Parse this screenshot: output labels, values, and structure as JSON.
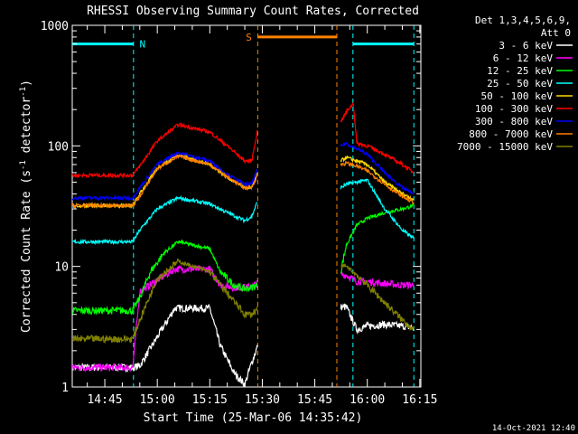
{
  "chart_data": {
    "type": "line",
    "title": "RHESSI Observing Summary Count Rates, Corrected",
    "xlabel": "Start Time (25-Mar-06 14:35:42)",
    "ylabel": "Corrected Count Rate (s⁻¹ detector⁻¹)",
    "ylabel_main": "Corrected Count Rate (s",
    "ylabel_sup1": "-1",
    "ylabel_mid": " detector",
    "ylabel_sup2": "-1",
    "ylabel_end": ")",
    "y_scale": "log",
    "ylim": [
      1,
      1000
    ],
    "y_ticks": [
      {
        "value": 1,
        "label": "1"
      },
      {
        "value": 10,
        "label": "10"
      },
      {
        "value": 100,
        "label": "100"
      },
      {
        "value": 1000,
        "label": "1000"
      }
    ],
    "xlim_minutes": [
      875.7,
      975.3
    ],
    "x_ticks": [
      {
        "value": 885,
        "label": "14:45"
      },
      {
        "value": 900,
        "label": "15:00"
      },
      {
        "value": 915,
        "label": "15:15"
      },
      {
        "value": 930,
        "label": "15:30"
      },
      {
        "value": 945,
        "label": "15:45"
      },
      {
        "value": 960,
        "label": "16:00"
      },
      {
        "value": 975,
        "label": "16:15"
      }
    ],
    "legend_header": [
      "Det 1,3,4,5,6,9,",
      "Att 0"
    ],
    "legend_placement": "right",
    "timestamp": "14-Oct-2021 12:40",
    "flags": [
      {
        "label": "N",
        "color": "#00ffff",
        "value": 700,
        "segments": [
          [
            875.7,
            893.2
          ],
          [
            955.9,
            973.3
          ]
        ],
        "markers": [
          893.2,
          955.9,
          973.3
        ]
      },
      {
        "label": "S",
        "color": "#ff8000",
        "value": 800,
        "segments": [
          [
            928.7,
            951.3
          ]
        ],
        "markers": [
          928.7,
          951.3
        ]
      }
    ],
    "gaps": [
      [
        928.7,
        951.3
      ]
    ],
    "series": [
      {
        "name": "3 - 6 keV",
        "color": "#ffffff",
        "times": [
          875.7,
          893,
          895,
          905,
          915,
          918,
          922,
          925,
          927,
          928.7,
          952.4,
          954,
          957,
          960,
          965,
          970,
          973.3
        ],
        "values": [
          1.45,
          1.45,
          1.5,
          4.5,
          4.5,
          2.2,
          1.3,
          1.05,
          1.6,
          2.2,
          4.6,
          4.6,
          3.0,
          3.2,
          3.3,
          3.2,
          3.1
        ]
      },
      {
        "name": "6 - 12 keV",
        "color": "#ff00ff",
        "times": [
          875.7,
          893,
          895,
          905,
          915,
          918,
          922,
          925,
          927,
          928.7,
          952.4,
          954,
          957,
          960,
          965,
          970,
          973.3
        ],
        "values": [
          1.45,
          1.45,
          6.2,
          9.5,
          9.5,
          7.0,
          6.7,
          6.7,
          6.8,
          7.3,
          8.5,
          8.5,
          7.5,
          7.5,
          7.2,
          7.0,
          7.0
        ]
      },
      {
        "name": "12 - 25 keV",
        "color": "#00ff00",
        "times": [
          875.7,
          893,
          895,
          898,
          902,
          906,
          915,
          918,
          922,
          925,
          927,
          928.7,
          952.4,
          954,
          957,
          960,
          965,
          970,
          973.3
        ],
        "values": [
          4.3,
          4.3,
          5.5,
          9,
          13,
          16,
          14,
          9,
          7,
          6.5,
          6.7,
          7.0,
          9,
          15,
          22,
          25,
          28,
          30,
          32
        ]
      },
      {
        "name": "25 - 50 keV",
        "color": "#00ffff",
        "times": [
          875.7,
          893,
          895,
          900,
          906,
          915,
          920,
          925,
          927,
          928.7,
          952.4,
          954,
          957,
          960,
          965,
          970,
          973.3
        ],
        "values": [
          16,
          16,
          20,
          30,
          37,
          33,
          28,
          24,
          26,
          35,
          45,
          48,
          50,
          52,
          30,
          20,
          17
        ]
      },
      {
        "name": "50 - 100 keV",
        "color": "#ffd700",
        "times": [
          875.7,
          893,
          895,
          900,
          906,
          915,
          920,
          925,
          927,
          928.7,
          952.4,
          954,
          957,
          960,
          965,
          970,
          973.3
        ],
        "values": [
          32,
          32,
          40,
          65,
          85,
          70,
          55,
          45,
          45,
          60,
          75,
          80,
          75,
          70,
          50,
          40,
          36
        ]
      },
      {
        "name": "100 - 300 keV",
        "color": "#ff0000",
        "times": [
          875.7,
          893,
          895,
          900,
          906,
          915,
          920,
          925,
          927,
          928.7,
          952.4,
          954,
          956,
          957,
          960,
          965,
          970,
          973.3
        ],
        "values": [
          57,
          57,
          68,
          110,
          150,
          130,
          100,
          75,
          75,
          140,
          160,
          190,
          225,
          105,
          100,
          85,
          70,
          60
        ]
      },
      {
        "name": "300 - 800 keV",
        "color": "#0000ff",
        "times": [
          875.7,
          893,
          895,
          900,
          906,
          915,
          920,
          925,
          927,
          928.7,
          952.4,
          954,
          957,
          960,
          965,
          970,
          973.3
        ],
        "values": [
          37,
          37,
          45,
          70,
          88,
          75,
          58,
          48,
          48,
          65,
          100,
          105,
          95,
          85,
          60,
          45,
          40
        ]
      },
      {
        "name": "800 - 7000 keV",
        "color": "#ff8000",
        "times": [
          875.7,
          893,
          895,
          900,
          906,
          915,
          920,
          925,
          927,
          928.7,
          952.4,
          954,
          957,
          960,
          965,
          970,
          973.3
        ],
        "values": [
          32,
          32,
          38,
          65,
          82,
          70,
          55,
          45,
          45,
          58,
          70,
          72,
          68,
          62,
          48,
          38,
          34
        ]
      },
      {
        "name": "7000 - 15000 keV",
        "color": "#808000",
        "times": [
          875.7,
          893,
          895,
          900,
          906,
          915,
          920,
          925,
          927,
          928.7,
          952.4,
          954,
          957,
          960,
          965,
          970,
          973.3
        ],
        "values": [
          2.5,
          2.5,
          3.6,
          8,
          11,
          9,
          6,
          4,
          4,
          4.5,
          10,
          10,
          8.5,
          7,
          5,
          3.6,
          3.0
        ]
      }
    ]
  }
}
